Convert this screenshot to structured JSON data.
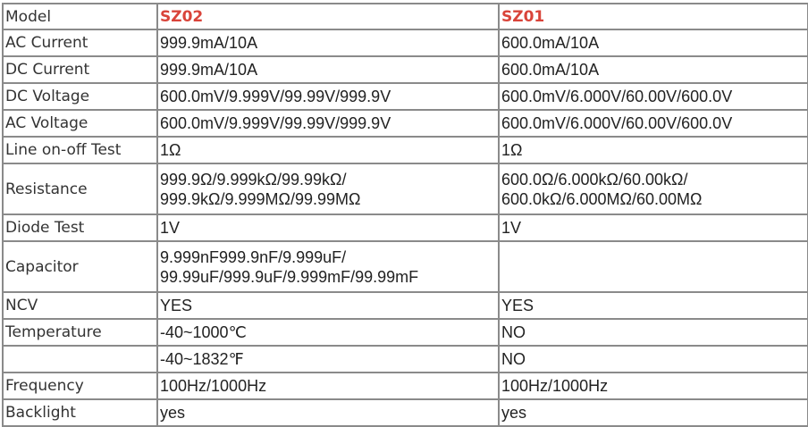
{
  "header": {
    "label": "Model",
    "models": [
      "SZ02",
      "SZ01"
    ],
    "model_color": "#d9443a"
  },
  "rows": [
    {
      "label": "AC Current",
      "sz02": [
        "999.9mA/10A"
      ],
      "sz01": [
        "600.0mA/10A"
      ]
    },
    {
      "label": "DC Current",
      "sz02": [
        "999.9mA/10A"
      ],
      "sz01": [
        "600.0mA/10A"
      ]
    },
    {
      "label": "DC Voltage",
      "sz02": [
        "600.0mV/9.999V/99.99V/999.9V"
      ],
      "sz01": [
        "600.0mV/6.000V/60.00V/600.0V"
      ]
    },
    {
      "label": "AC Voltage",
      "sz02": [
        "600.0mV/9.999V/99.99V/999.9V"
      ],
      "sz01": [
        "600.0mV/6.000V/60.00V/600.0V"
      ]
    },
    {
      "label": "Line on-off Test",
      "sz02": [
        "1Ω"
      ],
      "sz01": [
        "1Ω"
      ]
    },
    {
      "label": "Resistance",
      "sz02": [
        "999.9Ω/9.999kΩ/99.99kΩ/",
        "999.9kΩ/9.999MΩ/99.99MΩ"
      ],
      "sz01": [
        "600.0Ω/6.000kΩ/60.00kΩ/",
        "600.0kΩ/6.000MΩ/60.00MΩ"
      ]
    },
    {
      "label": "Diode Test",
      "sz02": [
        "1V"
      ],
      "sz01": [
        "1V"
      ]
    },
    {
      "label": "Capacitor",
      "sz02": [
        "9.999nF999.9nF/9.999uF/",
        "99.99uF/999.9uF/9.999mF/99.99mF"
      ],
      "sz01": [
        ""
      ]
    },
    {
      "label": "NCV",
      "sz02": [
        "YES"
      ],
      "sz01": [
        "YES"
      ]
    },
    {
      "label": "Temperature",
      "sz02": [
        "-40~1000℃"
      ],
      "sz01": [
        "NO"
      ]
    },
    {
      "label": "",
      "sz02": [
        "-40~1832℉"
      ],
      "sz01": [
        "NO"
      ]
    },
    {
      "label": "Frequency",
      "sz02": [
        "100Hz/1000Hz"
      ],
      "sz01": [
        "100Hz/1000Hz"
      ]
    },
    {
      "label": "Backlight",
      "sz02": [
        "yes"
      ],
      "sz01": [
        "yes"
      ]
    }
  ]
}
